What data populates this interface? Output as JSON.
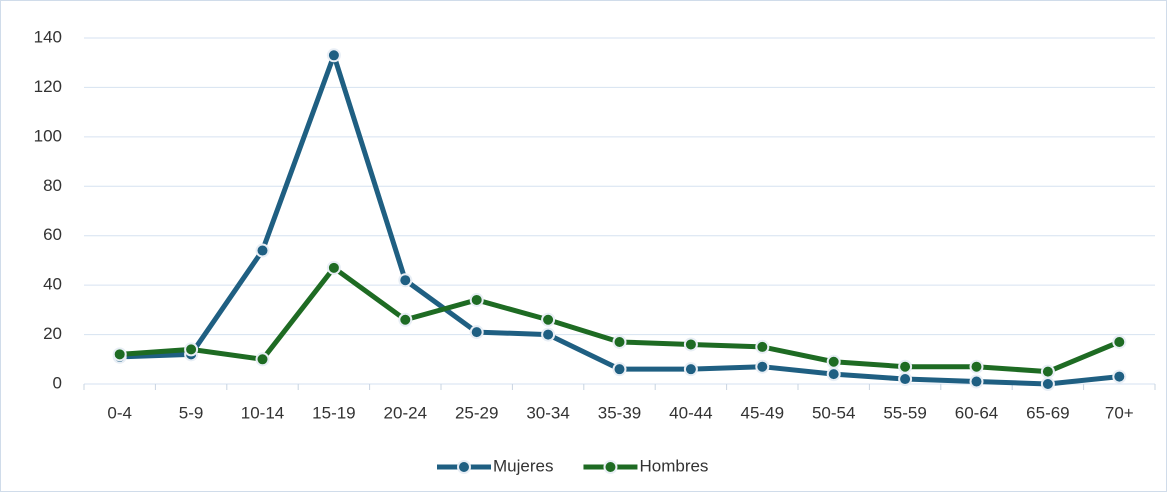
{
  "chart_data": {
    "type": "line",
    "categories": [
      "0-4",
      "5-9",
      "10-14",
      "15-19",
      "20-24",
      "25-29",
      "30-34",
      "35-39",
      "40-44",
      "45-49",
      "50-54",
      "55-59",
      "60-64",
      "65-69",
      "70+"
    ],
    "series": [
      {
        "name": "Mujeres",
        "color": "#1f5f82",
        "values": [
          11,
          12,
          54,
          133,
          42,
          21,
          20,
          6,
          6,
          7,
          4,
          2,
          1,
          0,
          3
        ]
      },
      {
        "name": "Hombres",
        "color": "#1e6b23",
        "values": [
          12,
          14,
          10,
          47,
          26,
          34,
          26,
          17,
          16,
          15,
          9,
          7,
          7,
          5,
          17
        ]
      }
    ],
    "ylim": [
      0,
      140
    ],
    "yticks": [
      0,
      20,
      40,
      60,
      80,
      100,
      120,
      140
    ],
    "grid": true,
    "legend": "bottom"
  }
}
